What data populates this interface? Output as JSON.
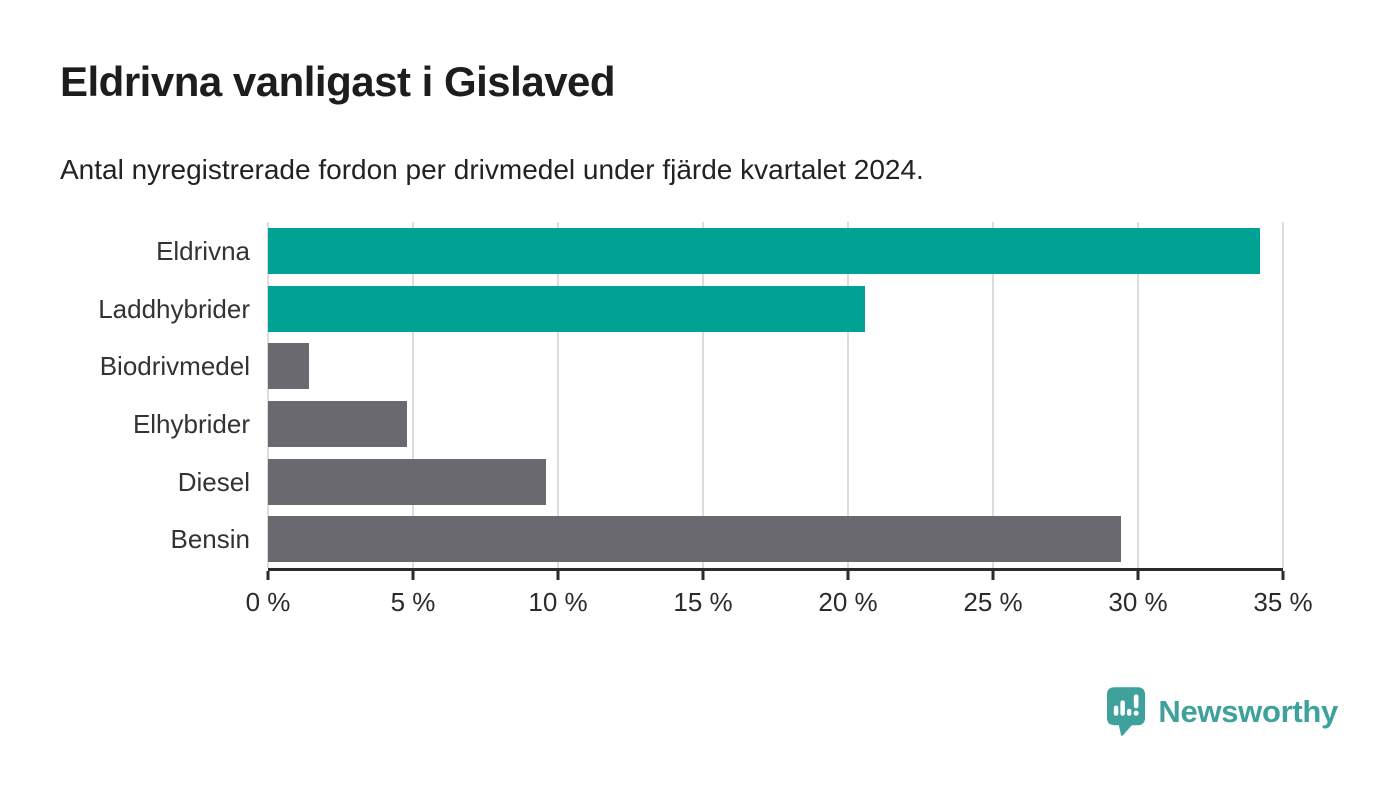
{
  "header": {
    "title": "Eldrivna vanligast i Gislaved",
    "subtitle": "Antal nyregistrerade fordon per drivmedel under fjärde kvartalet 2024."
  },
  "chart_data": {
    "type": "bar",
    "orientation": "horizontal",
    "categories": [
      "Eldrivna",
      "Laddhybrider",
      "Biodrivmedel",
      "Elhybrider",
      "Diesel",
      "Bensin"
    ],
    "values": [
      34.2,
      20.6,
      1.4,
      4.8,
      9.6,
      29.4
    ],
    "unit": "%",
    "bar_colors": [
      "#00a296",
      "#00a296",
      "#6b6970",
      "#6b6970",
      "#6b6970",
      "#6b6970"
    ],
    "highlight_color": "#00a296",
    "default_color": "#6b6970",
    "xlim": [
      0,
      35
    ],
    "xticks": [
      0,
      5,
      10,
      15,
      20,
      25,
      30,
      35
    ],
    "xtick_labels": [
      "0 %",
      "5 %",
      "10 %",
      "15 %",
      "20 %",
      "25 %",
      "30 %",
      "35 %"
    ],
    "grid": true,
    "gridline_color": "#dcdcdc",
    "axis_color": "#2b2b2b",
    "legend": false,
    "title": "Eldrivna vanligast i Gislaved",
    "xlabel": "",
    "ylabel": ""
  },
  "footer": {
    "brand": "Newsworthy",
    "brand_color": "#3fa19c"
  }
}
